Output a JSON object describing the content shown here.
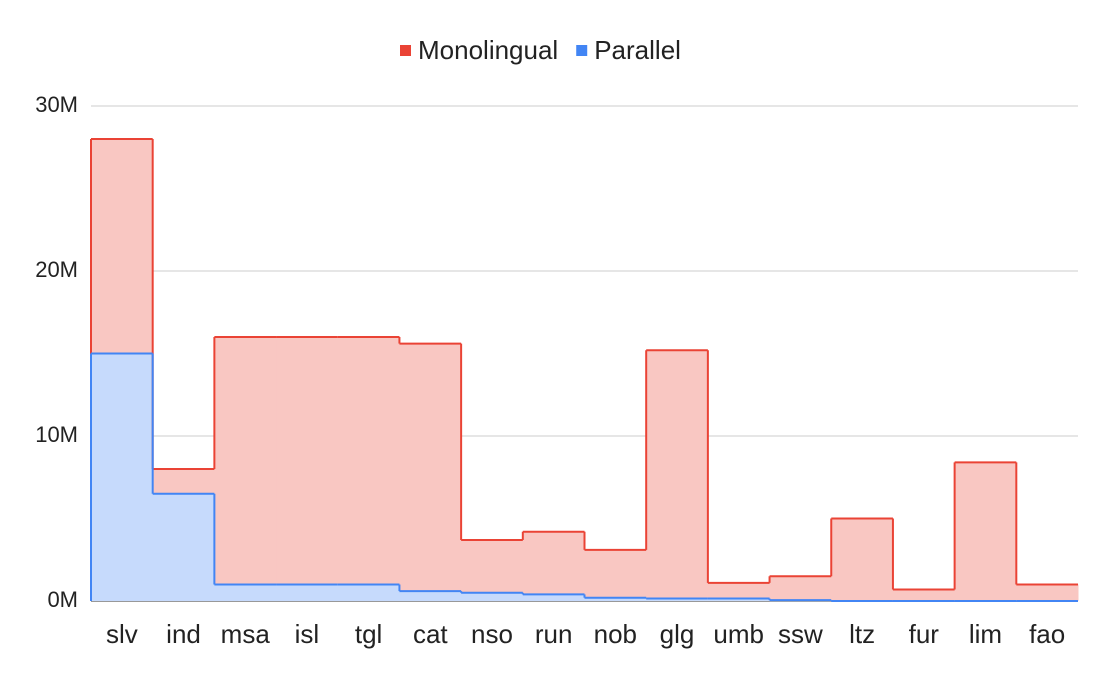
{
  "chart_data": {
    "type": "stepped-area",
    "categories": [
      "slv",
      "ind",
      "msa",
      "isl",
      "tgl",
      "cat",
      "nso",
      "run",
      "nob",
      "glg",
      "umb",
      "ssw",
      "ltz",
      "fur",
      "lim",
      "fao"
    ],
    "series": [
      {
        "name": "Monolingual",
        "color": "#ea4335",
        "values": [
          28,
          8,
          16,
          16,
          16,
          15.6,
          3.7,
          4.2,
          3.1,
          15.2,
          1.1,
          1.5,
          5,
          0.7,
          8.4,
          1
        ]
      },
      {
        "name": "Parallel",
        "color": "#4285f4",
        "values": [
          15,
          6.5,
          1,
          1,
          1,
          0.6,
          0.5,
          0.4,
          0.2,
          0.15,
          0.15,
          0.05,
          0,
          0,
          0,
          0
        ]
      }
    ],
    "ylim": [
      0,
      30
    ],
    "yticks": [
      {
        "value": 0,
        "label": "0M"
      },
      {
        "value": 10,
        "label": "10M"
      },
      {
        "value": 20,
        "label": "20M"
      },
      {
        "value": 30,
        "label": "30M"
      }
    ],
    "grid": true,
    "legend": "top"
  }
}
